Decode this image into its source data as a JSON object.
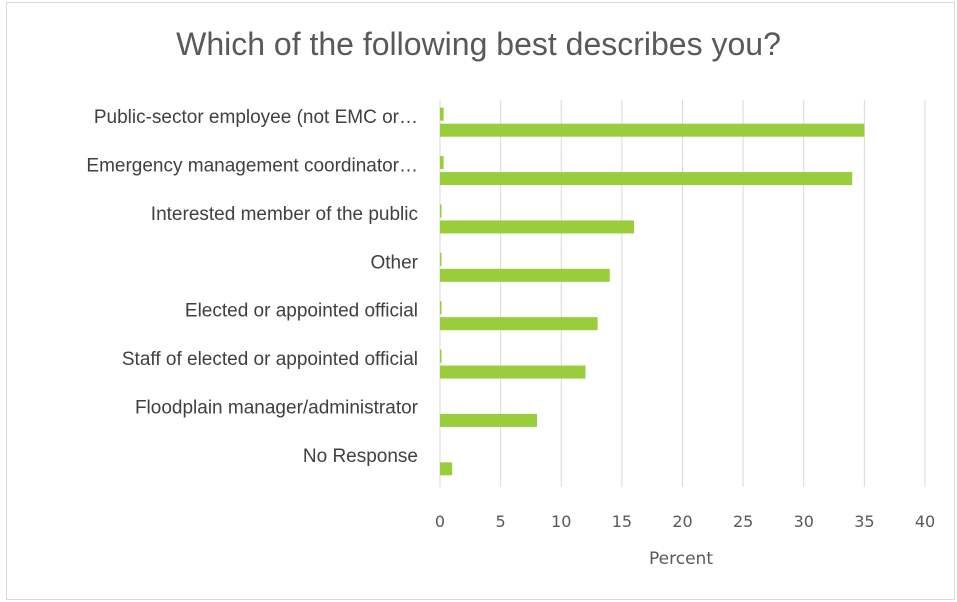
{
  "chart_data": {
    "type": "bar",
    "orientation": "horizontal",
    "title": "Which of the following best describes you?",
    "xlabel": "Percent",
    "ylabel": "",
    "xlim": [
      0,
      40
    ],
    "x_ticks": [
      0,
      5,
      10,
      15,
      20,
      25,
      30,
      35,
      40
    ],
    "grid": true,
    "bar_color": "#9ACD3C",
    "gridline_color": "#d9d9d9",
    "categories": [
      "Public-sector employee (not EMC or…",
      "Emergency management coordinator…",
      "Interested member of the public",
      "Other",
      "Elected or appointed official",
      "Staff of elected or appointed official",
      "Floodplain manager/administrator",
      "No Response"
    ],
    "series": [
      {
        "values": [
          35,
          34,
          16,
          14,
          13,
          12,
          8,
          1
        ]
      },
      {
        "values": [
          0.3,
          0.3,
          0.1,
          0.1,
          0.1,
          0.1,
          0,
          0
        ]
      }
    ]
  }
}
